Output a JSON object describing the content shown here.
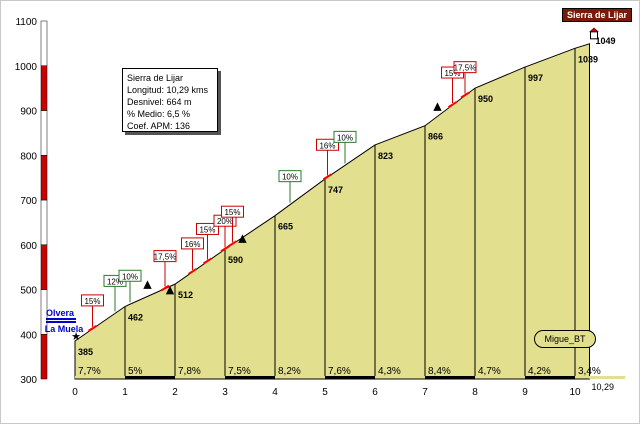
{
  "tag": "Sierra de Lijar",
  "info": {
    "name": "Sierra de Lijar",
    "length": "Longitud: 10,29 kms",
    "gain": "Desnivel: 664 m",
    "avg": "% Medio: 6,5 %",
    "coef": "Coef. APM: 136"
  },
  "author": "Migue_BT",
  "start_label": [
    "Olvera",
    "La Muela"
  ],
  "colors": {
    "fill": "#e2e08e",
    "outline": "#000000",
    "ramp": "#ff0000",
    "axis_red": "#cc0000",
    "sign_green": "#2d7a2d",
    "sign_red": "#cc0000",
    "start_blue": "#0000cc"
  },
  "chart_data": {
    "type": "area",
    "title": "",
    "xlabel": "",
    "ylabel": "",
    "xlim": [
      0,
      10.29
    ],
    "ylim": [
      300,
      1100
    ],
    "x_ticks": [
      0,
      1,
      2,
      3,
      4,
      5,
      6,
      7,
      8,
      9,
      10
    ],
    "x_end_label": "10,29",
    "y_ticks": [
      300,
      400,
      500,
      600,
      700,
      800,
      900,
      1000,
      1100
    ],
    "profile": [
      {
        "x": 0,
        "y": 385
      },
      {
        "x": 1,
        "y": 462
      },
      {
        "x": 2,
        "y": 512
      },
      {
        "x": 3,
        "y": 590
      },
      {
        "x": 4,
        "y": 665
      },
      {
        "x": 5,
        "y": 747
      },
      {
        "x": 6,
        "y": 823
      },
      {
        "x": 7,
        "y": 866
      },
      {
        "x": 8,
        "y": 950
      },
      {
        "x": 9,
        "y": 997
      },
      {
        "x": 10,
        "y": 1039
      },
      {
        "x": 10.29,
        "y": 1049
      }
    ],
    "point_labels": [
      {
        "x": 0,
        "y": 385,
        "label": "385"
      },
      {
        "x": 1,
        "y": 462,
        "label": "462"
      },
      {
        "x": 2,
        "y": 512,
        "label": "512"
      },
      {
        "x": 3,
        "y": 590,
        "label": "590"
      },
      {
        "x": 4,
        "y": 665,
        "label": "665"
      },
      {
        "x": 5,
        "y": 747,
        "label": "747"
      },
      {
        "x": 6,
        "y": 823,
        "label": "823"
      },
      {
        "x": 7,
        "y": 866,
        "label": "866"
      },
      {
        "x": 8,
        "y": 950,
        "label": "950"
      },
      {
        "x": 9,
        "y": 997,
        "label": "997"
      },
      {
        "x": 10,
        "y": 1039,
        "label": "1039"
      },
      {
        "x": 10.29,
        "y": 1049,
        "label": "1049"
      }
    ],
    "km_gradients": [
      "7,7%",
      "5%",
      "7,8%",
      "7,5%",
      "8,2%",
      "7,6%",
      "4,3%",
      "8,4%",
      "4,7%",
      "4,2%",
      "3,4%"
    ],
    "ramps": [
      {
        "x": 0.35,
        "label": "15%",
        "color": "red"
      },
      {
        "x": 0.8,
        "label": "12%",
        "color": "green"
      },
      {
        "x": 1.1,
        "label": "10%",
        "color": "green"
      },
      {
        "x": 1.8,
        "label": "17,5%",
        "color": "red"
      },
      {
        "x": 2.35,
        "label": "16%",
        "color": "red"
      },
      {
        "x": 2.65,
        "label": "15%",
        "color": "red"
      },
      {
        "x": 3.0,
        "label": "20%",
        "color": "red"
      },
      {
        "x": 3.15,
        "label": "15%",
        "color": "red"
      },
      {
        "x": 4.3,
        "label": "10%",
        "color": "green"
      },
      {
        "x": 5.05,
        "label": "16%",
        "color": "red"
      },
      {
        "x": 5.4,
        "label": "10%",
        "color": "green"
      },
      {
        "x": 7.55,
        "label": "15%",
        "color": "red"
      },
      {
        "x": 7.8,
        "label": "17,5%",
        "color": "red"
      }
    ]
  }
}
